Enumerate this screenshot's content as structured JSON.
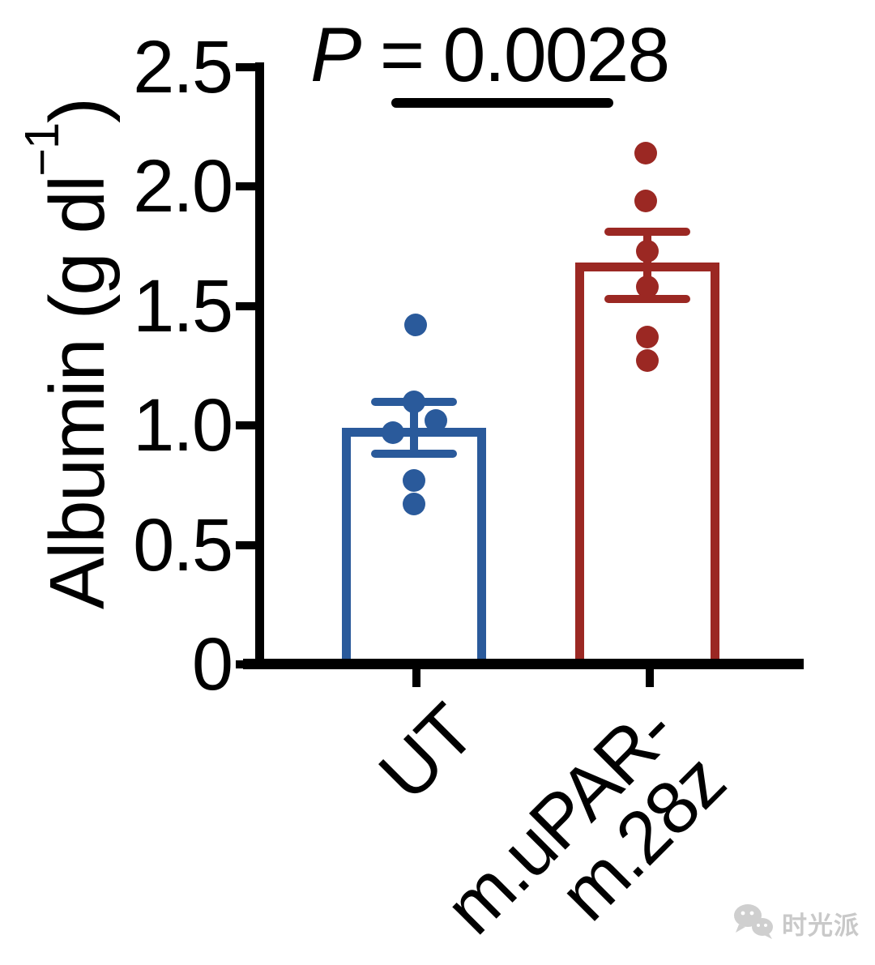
{
  "figure": {
    "p_annotation": {
      "label": "P",
      "rest": " = 0.0028"
    },
    "y_axis": {
      "title_main": "Albumin (g dl",
      "title_sup": "−1",
      "title_close": ")"
    },
    "watermark": {
      "text": "时光派",
      "icon": "wechat-icon",
      "color": "#c9c9c9"
    }
  },
  "chart_data": {
    "type": "bar",
    "title": "",
    "xlabel": "",
    "ylabel": "Albumin (g dl⁻¹)",
    "ylim": [
      0,
      2.5
    ],
    "yticks": [
      0,
      0.5,
      1.0,
      1.5,
      2.0,
      2.5
    ],
    "ytick_labels": [
      "0",
      "0.5",
      "1.0",
      "1.5",
      "2.0",
      "2.5"
    ],
    "grid": false,
    "legend": null,
    "annotation": "P = 0.0028",
    "categories": [
      "UT",
      "m.uPAR-\nm.28z"
    ],
    "series": [
      {
        "name": "UT",
        "color": "#2a5a9b",
        "mean": 0.97,
        "sem_top": 1.1,
        "sem_bottom": 0.88,
        "points": [
          1.42,
          1.1,
          1.02,
          0.97,
          0.77,
          0.67
        ],
        "jitter_x": [
          2,
          0,
          27,
          -26,
          0,
          0
        ]
      },
      {
        "name": "m.uPAR-m.28z",
        "color": "#9b2823",
        "mean": 1.66,
        "sem_top": 1.81,
        "sem_bottom": 1.53,
        "points": [
          2.14,
          1.94,
          1.73,
          1.58,
          1.37,
          1.27
        ],
        "jitter_x": [
          -2,
          -2,
          0,
          0,
          0,
          0
        ]
      }
    ]
  }
}
